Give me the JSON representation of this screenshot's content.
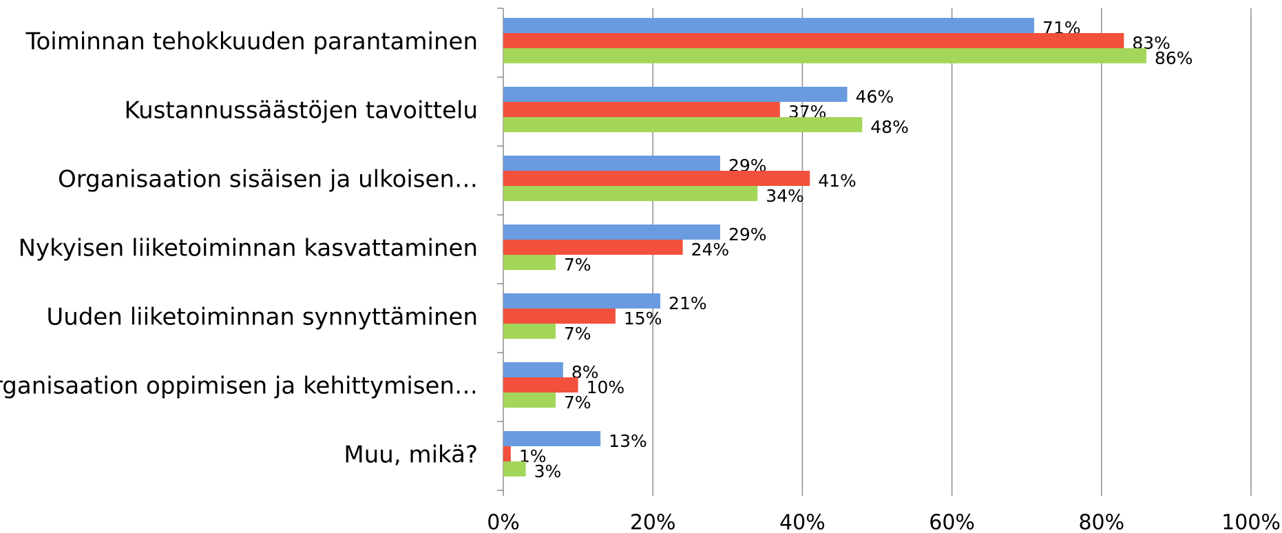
{
  "chart_data": {
    "type": "hbar",
    "categories": [
      "Toiminnan tehokkuuden parantaminen",
      "Kustannussäästöjen tavoittelu",
      "Organisaation sisäisen ja ulkoisen…",
      "Nykyisen liiketoiminnan kasvattaminen",
      "Uuden liiketoiminnan synnyttäminen",
      "Organisaation oppimisen ja kehittymisen…",
      "Muu, mikä?"
    ],
    "series": [
      {
        "color": "#6a9be0",
        "values": [
          71,
          46,
          29,
          29,
          21,
          8,
          13
        ],
        "value_labels": [
          "71%",
          "46%",
          "29%",
          "29%",
          "21%",
          "8%",
          "13%"
        ]
      },
      {
        "color": "#f2503c",
        "values": [
          83,
          37,
          41,
          24,
          15,
          10,
          1
        ],
        "value_labels": [
          "83%",
          "37%",
          "41%",
          "24%",
          "15%",
          "10%",
          "1%"
        ]
      },
      {
        "color": "#a4d65a",
        "values": [
          86,
          48,
          34,
          7,
          7,
          7,
          3
        ],
        "value_labels": [
          "86%",
          "48%",
          "34%",
          "7%",
          "7%",
          "7%",
          "3%"
        ]
      }
    ],
    "xlim": [
      0,
      100
    ],
    "xticks": [
      {
        "value": 0,
        "label": "0%"
      },
      {
        "value": 20,
        "label": "20%"
      },
      {
        "value": 40,
        "label": "40%"
      },
      {
        "value": 60,
        "label": "60%"
      },
      {
        "value": 80,
        "label": "80%"
      },
      {
        "value": 100,
        "label": "100%"
      }
    ],
    "grid": true
  }
}
